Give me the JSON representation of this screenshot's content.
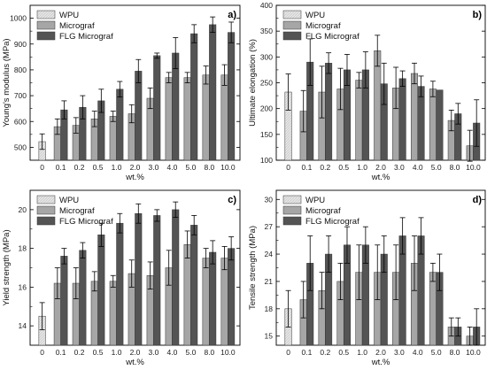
{
  "colors": {
    "WPU": "#dcdcdc",
    "Micrograf": "#a6a6a6",
    "FLG Micrograf": "#545454",
    "axis": "#000000"
  },
  "chart_data": [
    {
      "type": "bar",
      "panel": "a)",
      "ylabel": "Young's modulus (MPa)",
      "xlabel": "wt.%",
      "ylim": [
        450,
        1050
      ],
      "yticks": [
        500,
        600,
        700,
        800,
        900,
        1000
      ],
      "legend": "top-left",
      "categories": [
        "0",
        "0.1",
        "0.2",
        "0.5",
        "1.0",
        "2.0",
        "3.0",
        "4.0",
        "5.0",
        "8.0",
        "10.0"
      ],
      "series": [
        {
          "name": "WPU",
          "values": [
            522,
            null,
            null,
            null,
            null,
            null,
            null,
            null,
            null,
            null,
            null
          ],
          "errors": [
            30,
            null,
            null,
            null,
            null,
            null,
            null,
            null,
            null,
            null,
            null
          ]
        },
        {
          "name": "Micrograf",
          "values": [
            null,
            580,
            585,
            610,
            620,
            630,
            690,
            770,
            770,
            780,
            780
          ],
          "errors": [
            null,
            30,
            30,
            30,
            20,
            35,
            40,
            20,
            20,
            35,
            40
          ]
        },
        {
          "name": "FLG Micrograf",
          "values": [
            null,
            645,
            655,
            680,
            725,
            795,
            855,
            865,
            940,
            975,
            945
          ],
          "errors": [
            null,
            35,
            45,
            45,
            30,
            45,
            10,
            60,
            35,
            30,
            40
          ]
        }
      ]
    },
    {
      "type": "bar",
      "panel": "b)",
      "ylabel": "Ultimate elongation (%)",
      "xlabel": "wt.%",
      "ylim": [
        100,
        400
      ],
      "yticks": [
        100,
        150,
        200,
        250,
        300,
        350,
        400
      ],
      "legend": "top-left",
      "categories": [
        "0",
        "0.1",
        "0.2",
        "0.5",
        "1.0",
        "2.0",
        "3.0",
        "4.0",
        "5.0",
        "8.0",
        "10.0"
      ],
      "series": [
        {
          "name": "WPU",
          "values": [
            232,
            null,
            null,
            null,
            null,
            null,
            null,
            null,
            null,
            null,
            null
          ],
          "errors": [
            35,
            null,
            null,
            null,
            null,
            null,
            null,
            null,
            null,
            null,
            null
          ]
        },
        {
          "name": "Micrograf",
          "values": [
            null,
            195,
            232,
            238,
            255,
            312,
            240,
            268,
            238,
            177,
            128
          ],
          "errors": [
            null,
            40,
            50,
            40,
            15,
            30,
            40,
            20,
            15,
            20,
            30
          ]
        },
        {
          "name": "FLG Micrograf",
          "values": [
            null,
            290,
            288,
            275,
            275,
            248,
            258,
            243,
            236,
            190,
            172
          ],
          "errors": [
            null,
            45,
            20,
            30,
            35,
            40,
            15,
            20,
            0,
            20,
            45
          ]
        }
      ]
    },
    {
      "type": "bar",
      "panel": "c)",
      "ylabel": "Yield strength (MPa)",
      "xlabel": "wt.%",
      "ylim": [
        13,
        21
      ],
      "yticks": [
        14,
        16,
        18,
        20
      ],
      "legend": "top-left",
      "categories": [
        "0",
        "0.1",
        "0.2",
        "0.5",
        "1.0",
        "2.0",
        "3.0",
        "4.0",
        "5.0",
        "8.0",
        "10.0"
      ],
      "series": [
        {
          "name": "WPU",
          "values": [
            14.5,
            null,
            null,
            null,
            null,
            null,
            null,
            null,
            null,
            null,
            null
          ],
          "errors": [
            0.7,
            null,
            null,
            null,
            null,
            null,
            null,
            null,
            null,
            null,
            null
          ]
        },
        {
          "name": "Micrograf",
          "values": [
            null,
            16.2,
            16.2,
            16.3,
            16.3,
            16.7,
            16.6,
            17.0,
            18.2,
            17.5,
            17.5
          ],
          "errors": [
            null,
            0.8,
            0.8,
            0.5,
            0.3,
            0.7,
            0.7,
            0.9,
            0.7,
            0.5,
            0.6
          ]
        },
        {
          "name": "FLG Micrograf",
          "values": [
            null,
            17.6,
            17.9,
            18.7,
            19.3,
            19.8,
            19.7,
            20.0,
            19.2,
            17.8,
            18.0
          ],
          "errors": [
            null,
            0.4,
            0.4,
            0.6,
            0.5,
            0.5,
            0.3,
            0.4,
            0.5,
            0.6,
            0.6
          ]
        }
      ]
    },
    {
      "type": "bar",
      "panel": "d)",
      "ylabel": "Tensile strength (MPa)",
      "xlabel": "wt.%",
      "ylim": [
        14,
        31
      ],
      "yticks": [
        15,
        18,
        21,
        24,
        27,
        30
      ],
      "legend": "top-left",
      "categories": [
        "0",
        "0.1",
        "0.2",
        "0.5",
        "1.0",
        "2.0",
        "3.0",
        "4.0",
        "5.0",
        "8.0",
        "10.0"
      ],
      "series": [
        {
          "name": "WPU",
          "values": [
            18,
            null,
            null,
            null,
            null,
            null,
            null,
            null,
            null,
            null,
            null
          ],
          "errors": [
            2,
            null,
            null,
            null,
            null,
            null,
            null,
            null,
            null,
            null,
            null
          ]
        },
        {
          "name": "Micrograf",
          "values": [
            null,
            19,
            20,
            21,
            22,
            22,
            22,
            23,
            22,
            16,
            15
          ],
          "errors": [
            null,
            2,
            2,
            2,
            3,
            3,
            3,
            3,
            1,
            1,
            1
          ]
        },
        {
          "name": "FLG Micrograf",
          "values": [
            null,
            23,
            24,
            25,
            25,
            24,
            26,
            26,
            22,
            16,
            16
          ],
          "errors": [
            null,
            3,
            2,
            2,
            2,
            2,
            2,
            2,
            2,
            1,
            2
          ]
        }
      ]
    }
  ]
}
